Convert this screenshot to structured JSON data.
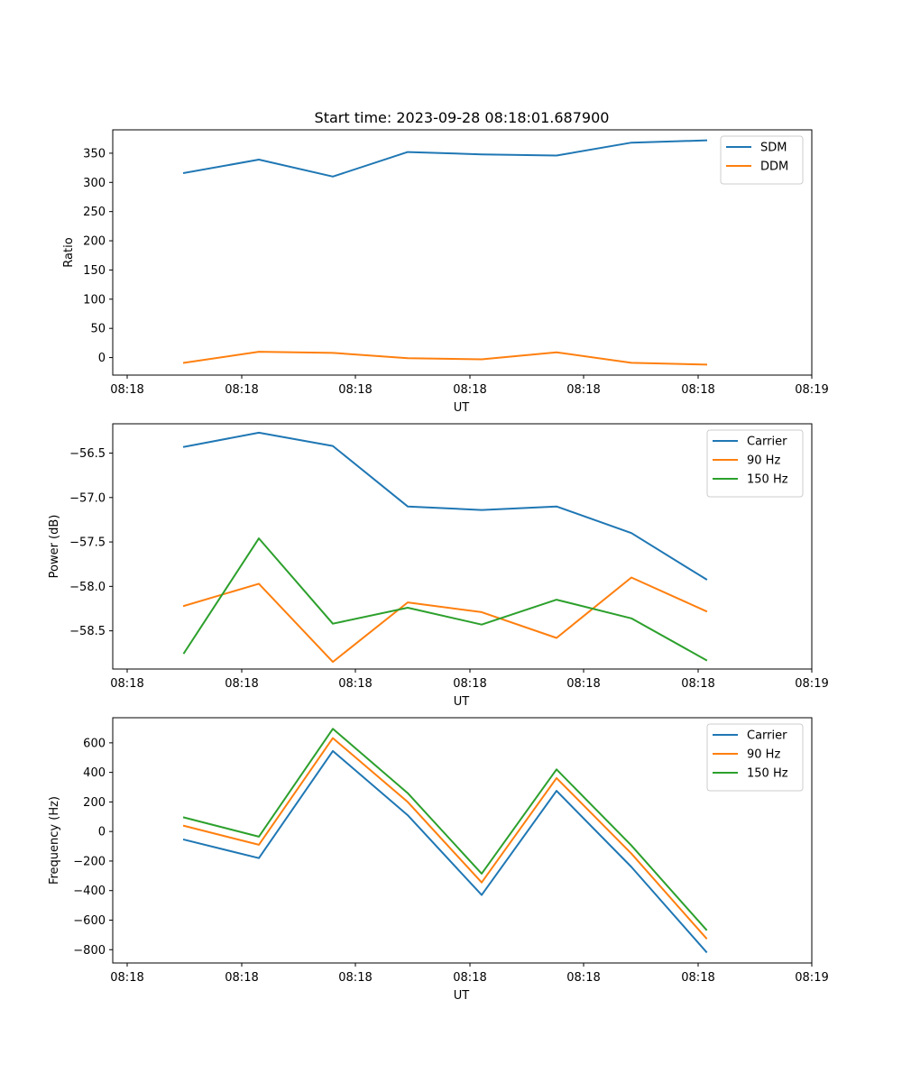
{
  "figure": {
    "title": "Start time: 2023-09-28 08:18:01.687900"
  },
  "colors": {
    "blue": "#1f77b4",
    "orange": "#ff7f0e",
    "green": "#2ca02c"
  },
  "chart_data": [
    {
      "type": "line",
      "title": "Start time: 2023-09-28 08:18:01.687900",
      "xlabel": "UT",
      "ylabel": "Ratio",
      "x_ticks": [
        "08:18",
        "08:18",
        "08:18",
        "08:18",
        "08:18",
        "08:18",
        "08:19"
      ],
      "xlim": [
        0,
        9
      ],
      "x": [
        0.5,
        1.5,
        2.5,
        3.5,
        4.5,
        5.5,
        6.5,
        7.5
      ],
      "ylim": [
        -30,
        390
      ],
      "y_ticks": [
        0,
        50,
        100,
        150,
        200,
        250,
        300,
        350
      ],
      "legend": "top-right",
      "series": [
        {
          "name": "SDM",
          "color": "#1f77b4",
          "values": [
            316,
            339,
            310,
            352,
            348,
            346,
            368,
            372
          ]
        },
        {
          "name": "DDM",
          "color": "#ff7f0e",
          "values": [
            -9,
            10,
            8,
            -1,
            -3,
            9,
            -9,
            -12
          ]
        }
      ]
    },
    {
      "type": "line",
      "title": "",
      "xlabel": "UT",
      "ylabel": "Power (dB)",
      "x_ticks": [
        "08:18",
        "08:18",
        "08:18",
        "08:18",
        "08:18",
        "08:18",
        "08:19"
      ],
      "xlim": [
        0,
        9
      ],
      "x": [
        0.5,
        1.5,
        2.5,
        3.5,
        4.5,
        5.5,
        6.5,
        7.5
      ],
      "ylim": [
        -58.93,
        -56.17
      ],
      "y_ticks": [
        -58.5,
        -58.0,
        -57.5,
        -57.0,
        -56.5
      ],
      "y_tick_labels": [
        "−58.5",
        "−58.0",
        "−57.5",
        "−57.0",
        "−56.5"
      ],
      "legend": "top-right",
      "series": [
        {
          "name": "Carrier",
          "color": "#1f77b4",
          "values": [
            -56.43,
            -56.27,
            -56.42,
            -57.1,
            -57.14,
            -57.1,
            -57.4,
            -57.92
          ]
        },
        {
          "name": "90 Hz",
          "color": "#ff7f0e",
          "values": [
            -58.22,
            -57.97,
            -58.85,
            -58.18,
            -58.29,
            -58.58,
            -57.9,
            -58.28
          ]
        },
        {
          "name": "150 Hz",
          "color": "#2ca02c",
          "values": [
            -58.75,
            -57.46,
            -58.42,
            -58.24,
            -58.43,
            -58.15,
            -58.36,
            -58.83
          ]
        }
      ]
    },
    {
      "type": "line",
      "title": "",
      "xlabel": "UT",
      "ylabel": "Frequency (Hz)",
      "x_ticks": [
        "08:18",
        "08:18",
        "08:18",
        "08:18",
        "08:18",
        "08:18",
        "08:19"
      ],
      "xlim": [
        0,
        9
      ],
      "x": [
        0.5,
        1.5,
        2.5,
        3.5,
        4.5,
        5.5,
        6.5,
        7.5
      ],
      "ylim": [
        -890,
        770
      ],
      "y_ticks": [
        -800,
        -600,
        -400,
        -200,
        0,
        200,
        400,
        600
      ],
      "y_tick_labels": [
        "−800",
        "−600",
        "−400",
        "−200",
        "0",
        "200",
        "400",
        "600"
      ],
      "legend": "top-right",
      "series": [
        {
          "name": "Carrier",
          "color": "#1f77b4",
          "values": [
            -55,
            -180,
            545,
            110,
            -430,
            275,
            -240,
            -815
          ]
        },
        {
          "name": "90 Hz",
          "color": "#ff7f0e",
          "values": [
            38,
            -90,
            632,
            200,
            -345,
            362,
            -150,
            -723
          ]
        },
        {
          "name": "150 Hz",
          "color": "#2ca02c",
          "values": [
            95,
            -35,
            695,
            260,
            -285,
            420,
            -95,
            -665
          ]
        }
      ]
    }
  ]
}
